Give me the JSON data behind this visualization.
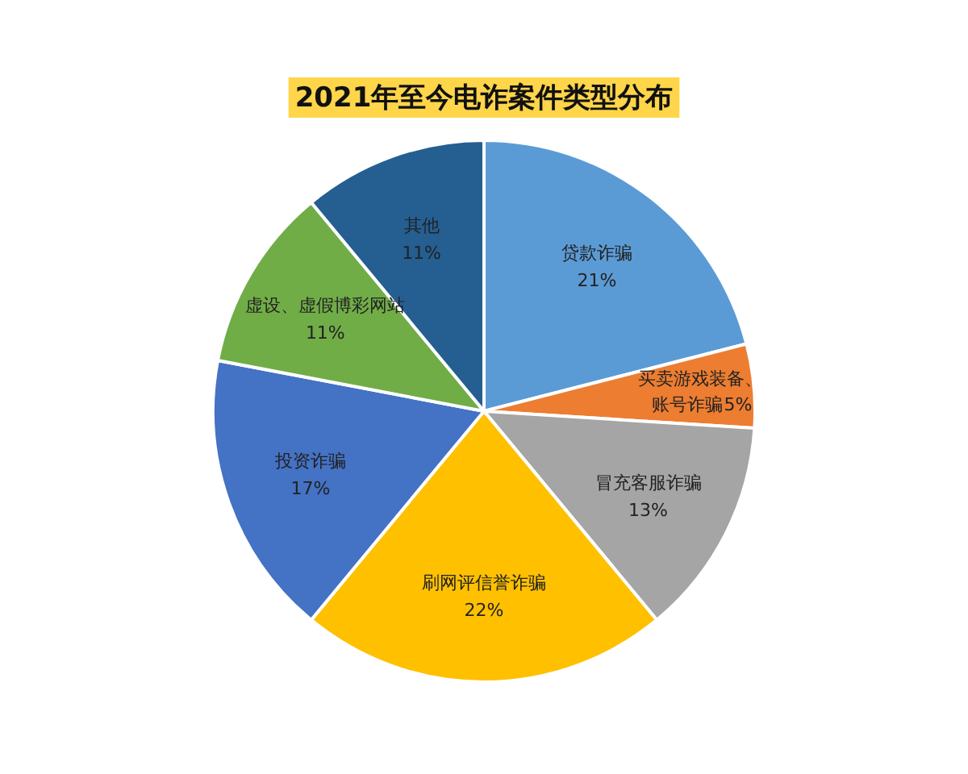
{
  "chart_data": {
    "type": "pie",
    "title": "2021年至今电诈案件类型分布",
    "categories": [
      "贷款诈骗",
      "买卖游戏装备、账号诈骗",
      "冒充客服诈骗",
      "刷网评信誉诈骗",
      "投资诈骗",
      "虚设、虚假博彩网站",
      "其他"
    ],
    "values": [
      21,
      5,
      13,
      22,
      17,
      11,
      11
    ],
    "colors": [
      "#5b9bd5",
      "#ed7d31",
      "#a5a5a5",
      "#ffc000",
      "#4472c4",
      "#70ad47",
      "#255e91"
    ],
    "value_labels": [
      "21%",
      "5%",
      "13%",
      "22%",
      "17%",
      "11%",
      "11%"
    ]
  }
}
